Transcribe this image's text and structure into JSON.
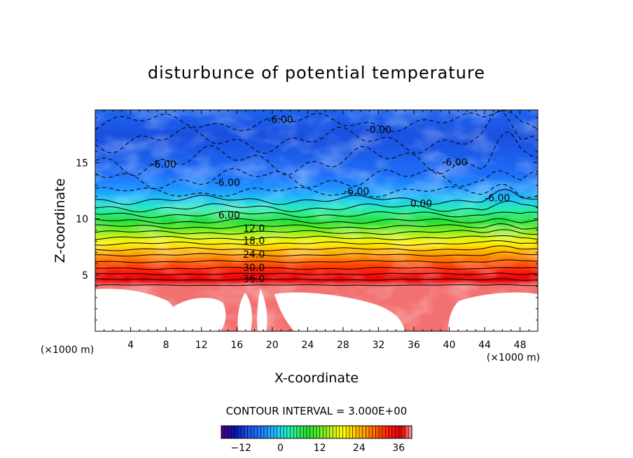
{
  "chart_data": {
    "type": "heatmap",
    "title": "disturbunce of potential temperature",
    "xlabel": "X-coordinate",
    "ylabel": "Z-coordinate",
    "x_unit": "(×1000 m)",
    "z_unit": "(×1000 m)",
    "xlim": [
      0,
      50
    ],
    "ylim": [
      0,
      19.7
    ],
    "x_ticks": [
      4,
      8,
      12,
      16,
      20,
      24,
      28,
      32,
      36,
      40,
      44,
      48
    ],
    "y_ticks": [
      5,
      10,
      15
    ],
    "contour_interval_text": "CONTOUR INTERVAL = 3.000E+00",
    "contour_interval": 3.0,
    "colorbar": {
      "range": [
        -18,
        40
      ],
      "tick_values": [
        -12,
        0,
        12,
        24,
        36
      ],
      "tick_labels": [
        "−12",
        "0",
        "12",
        "24",
        "36"
      ]
    },
    "color_scale": [
      {
        "value": -18,
        "color": "#4b0082"
      },
      {
        "value": -14,
        "color": "#0a10b0"
      },
      {
        "value": -10,
        "color": "#1a50e0"
      },
      {
        "value": -6,
        "color": "#1f78ff"
      },
      {
        "value": -2,
        "color": "#20b8ff"
      },
      {
        "value": 1,
        "color": "#20e6d8"
      },
      {
        "value": 4,
        "color": "#30f090"
      },
      {
        "value": 8,
        "color": "#22e03a"
      },
      {
        "value": 12,
        "color": "#60ee20"
      },
      {
        "value": 16,
        "color": "#c8f020"
      },
      {
        "value": 19,
        "color": "#ffff00"
      },
      {
        "value": 22,
        "color": "#ffd000"
      },
      {
        "value": 26,
        "color": "#ff9a00"
      },
      {
        "value": 30,
        "color": "#ff5000"
      },
      {
        "value": 34,
        "color": "#ff1010"
      },
      {
        "value": 37,
        "color": "#e80000"
      },
      {
        "value": 40,
        "color": "#f8a8a8"
      }
    ],
    "profile_by_height": [
      {
        "z": 0.0,
        "value": 39
      },
      {
        "z": 4.1,
        "value": 39
      },
      {
        "z": 4.5,
        "value": 37
      },
      {
        "z": 5.0,
        "value": 35
      },
      {
        "z": 5.6,
        "value": 32
      },
      {
        "z": 6.2,
        "value": 29
      },
      {
        "z": 6.8,
        "value": 26
      },
      {
        "z": 7.3,
        "value": 23
      },
      {
        "z": 7.8,
        "value": 20
      },
      {
        "z": 8.3,
        "value": 17
      },
      {
        "z": 8.8,
        "value": 14
      },
      {
        "z": 9.3,
        "value": 11
      },
      {
        "z": 9.8,
        "value": 8
      },
      {
        "z": 10.4,
        "value": 5
      },
      {
        "z": 11.0,
        "value": 2
      },
      {
        "z": 11.7,
        "value": -1
      },
      {
        "z": 12.6,
        "value": -4
      },
      {
        "z": 14.0,
        "value": -7
      },
      {
        "z": 16.0,
        "value": -9
      },
      {
        "z": 17.5,
        "value": -10
      },
      {
        "z": 19.7,
        "value": -8
      }
    ],
    "contours": [
      {
        "label": "36.0",
        "z": 4.6,
        "x": 16.7
      },
      {
        "label": "30.0",
        "z": 5.6,
        "x": 16.7
      },
      {
        "label": "24.0",
        "z": 6.8,
        "x": 16.7
      },
      {
        "label": "18.0",
        "z": 8.0,
        "x": 16.7
      },
      {
        "label": "12.0",
        "z": 9.1,
        "x": 16.7
      },
      {
        "label": "6.00",
        "z": 10.3,
        "x": 13.9
      },
      {
        "label": "0.00",
        "z": 11.3,
        "x": 35.6
      },
      {
        "label": "-6.00",
        "z": 12.4,
        "x": 28.1
      },
      {
        "label": "-6.00",
        "z": 14.8,
        "x": 6.3
      },
      {
        "label": "-6.00",
        "z": 13.2,
        "x": 13.5
      },
      {
        "label": "-6.00",
        "z": 18.8,
        "x": 19.5
      },
      {
        "label": "-0.00",
        "z": 17.9,
        "x": 30.6
      },
      {
        "label": "-6.00",
        "z": 15.0,
        "x": 39.2
      },
      {
        "label": "-6.00",
        "z": 11.8,
        "x": 44.0
      }
    ],
    "white_regions_below_level": 40
  }
}
